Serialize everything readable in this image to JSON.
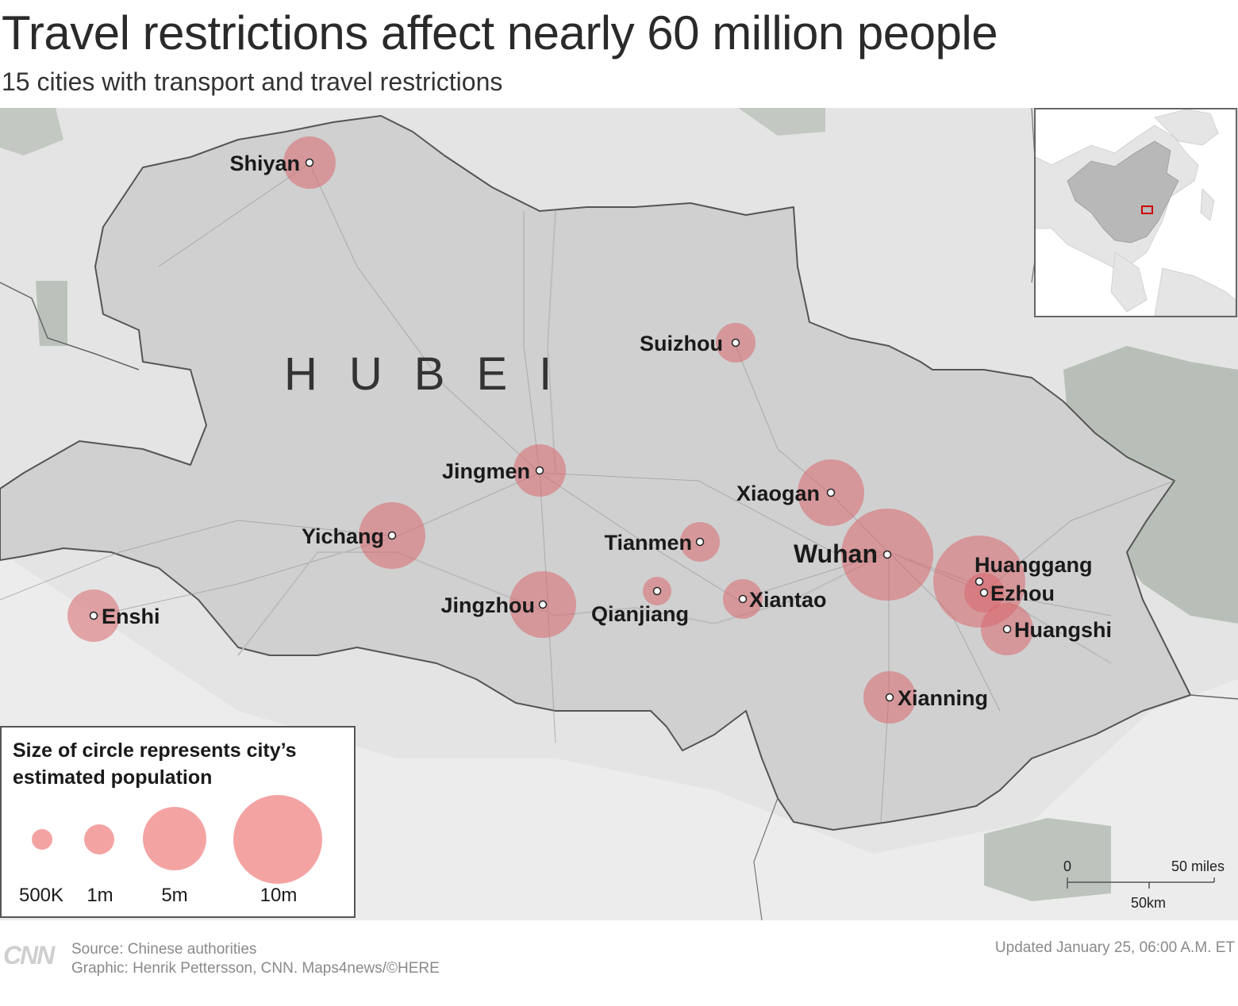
{
  "title": "Travel restrictions affect nearly 60 million people",
  "subtitle": "15 cities with transport and travel restrictions",
  "region_label": "HUBEI",
  "cities": [
    {
      "name": "Shiyan",
      "size": "medium"
    },
    {
      "name": "Suizhou",
      "size": "small"
    },
    {
      "name": "Jingmen",
      "size": "medium"
    },
    {
      "name": "Xiaogan",
      "size": "large"
    },
    {
      "name": "Yichang",
      "size": "large"
    },
    {
      "name": "Tianmen",
      "size": "small"
    },
    {
      "name": "Wuhan",
      "size": "xlarge"
    },
    {
      "name": "Huanggang",
      "size": "xlarge"
    },
    {
      "name": "Ezhou",
      "size": "small"
    },
    {
      "name": "Enshi",
      "size": "medium"
    },
    {
      "name": "Jingzhou",
      "size": "large"
    },
    {
      "name": "Qianjiang",
      "size": "xsmall"
    },
    {
      "name": "Xiantao",
      "size": "small"
    },
    {
      "name": "Huangshi",
      "size": "medium"
    },
    {
      "name": "Xianning",
      "size": "medium"
    }
  ],
  "legend": {
    "title": "Size of circle represents city’s estimated population",
    "items": [
      {
        "label": "500K"
      },
      {
        "label": "1m"
      },
      {
        "label": "5m"
      },
      {
        "label": "10m"
      }
    ]
  },
  "scale": {
    "zero": "0",
    "miles": "50 miles",
    "km": "50km"
  },
  "footer": {
    "logo": "CNN",
    "source": "Source: Chinese authorities",
    "graphic": "Graphic: Henrik Pettersson, CNN. Maps4news/©HERE",
    "updated": "Updated January 25, 06:00 A.M. ET"
  },
  "colors": {
    "city_circle": "#d9676e",
    "legend_circle": "#f4a3a3",
    "map_land": "#e2e2e2",
    "province_fill": "#d0d0d0",
    "forest": "#a8b2a8",
    "inset_highlight": "#cc0000"
  }
}
